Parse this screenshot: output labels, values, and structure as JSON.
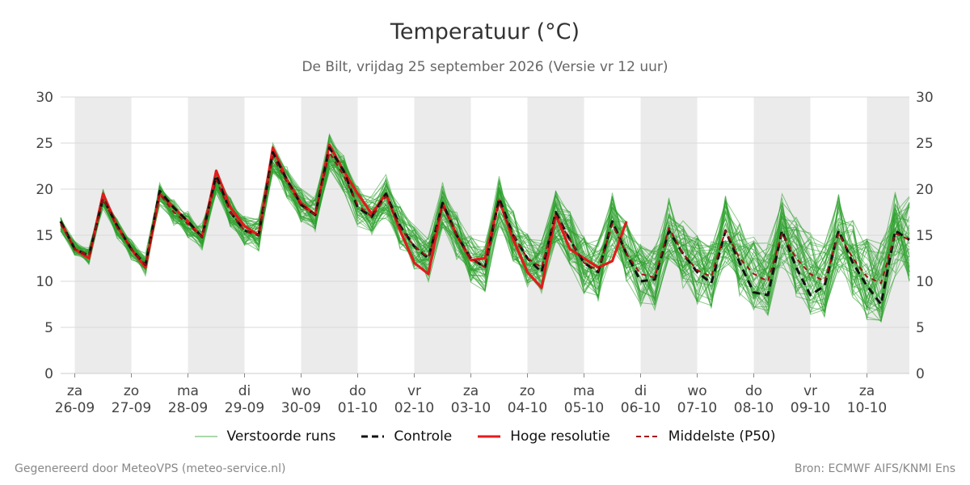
{
  "header": {
    "title": "Temperatuur (°C)",
    "subtitle": "De Bilt, vrijdag 25 september 2026 (Versie vr 12 uur)"
  },
  "footer": {
    "left": "Gegenereerd door MeteoVPS (meteo-service.nl)",
    "right": "Bron: ECMWF AIFS/KNMI Ens"
  },
  "colors": {
    "members": "#2ca02c",
    "controle": "#111111",
    "hoge_resolutie": "#e31a1c",
    "middelste": "#a50f15",
    "weekend_band": "#ebebeb"
  },
  "chart_data": {
    "type": "line",
    "title": "Temperatuur (°C)",
    "ylim": [
      0,
      30
    ],
    "yticks": [
      0,
      5,
      10,
      15,
      20,
      25,
      30
    ],
    "grid": true,
    "legend_position": "bottom",
    "x_unit": "days",
    "x_start": -0.25,
    "x_end": 14.75,
    "x_categories": [
      {
        "day": "za",
        "date": "26-09"
      },
      {
        "day": "zo",
        "date": "27-09"
      },
      {
        "day": "ma",
        "date": "28-09"
      },
      {
        "day": "di",
        "date": "29-09"
      },
      {
        "day": "wo",
        "date": "30-09"
      },
      {
        "day": "do",
        "date": "01-10"
      },
      {
        "day": "vr",
        "date": "02-10"
      },
      {
        "day": "za",
        "date": "03-10"
      },
      {
        "day": "zo",
        "date": "04-10"
      },
      {
        "day": "ma",
        "date": "05-10"
      },
      {
        "day": "di",
        "date": "06-10"
      },
      {
        "day": "wo",
        "date": "07-10"
      },
      {
        "day": "do",
        "date": "08-10"
      },
      {
        "day": "vr",
        "date": "09-10"
      },
      {
        "day": "za",
        "date": "10-10"
      }
    ],
    "legend": [
      {
        "key": "members",
        "label": "Verstoorde runs",
        "style": "thin"
      },
      {
        "key": "controle",
        "label": "Controle",
        "style": "dashed"
      },
      {
        "key": "hoge_resolutie",
        "label": "Hoge resolutie",
        "style": "solid"
      },
      {
        "key": "middelste",
        "label": "Middelste (P50)",
        "style": "dashed-thin"
      }
    ],
    "series": [
      {
        "name": "Controle",
        "x": [
          -0.25,
          0,
          0.25,
          0.5,
          0.75,
          1,
          1.25,
          1.5,
          1.75,
          2,
          2.25,
          2.5,
          2.75,
          3,
          3.25,
          3.5,
          3.75,
          4,
          4.25,
          4.5,
          4.75,
          5,
          5.25,
          5.5,
          5.75,
          6,
          6.25,
          6.5,
          6.75,
          7,
          7.25,
          7.5,
          7.75,
          8,
          8.25,
          8.5,
          8.75,
          9,
          9.25,
          9.5,
          9.75,
          10,
          10.25,
          10.5,
          10.75,
          11,
          11.25,
          11.5,
          11.75,
          12,
          12.25,
          12.5,
          12.75,
          13,
          13.25,
          13.5,
          13.75,
          14,
          14.25,
          14.5,
          14.75
        ],
        "y": [
          16.5,
          13.5,
          12.8,
          19,
          16,
          13.5,
          11.8,
          19.8,
          18,
          16.5,
          14.8,
          21.5,
          17.5,
          15.5,
          15,
          24,
          21,
          18.3,
          17.2,
          24.5,
          22,
          18,
          17,
          19.5,
          16,
          13.8,
          12.5,
          18.5,
          15,
          12.5,
          11.5,
          19,
          15,
          12.5,
          11,
          17.5,
          14.5,
          12,
          11,
          16.5,
          13,
          10,
          10.2,
          15.5,
          13,
          11,
          9.8,
          15.5,
          12,
          8.8,
          8.5,
          15.5,
          11.5,
          8.5,
          9.5,
          15.5,
          12,
          9.5,
          7.5,
          15.5,
          14.5
        ]
      },
      {
        "name": "Hoge resolutie",
        "x": [
          -0.25,
          0,
          0.25,
          0.5,
          0.75,
          1,
          1.25,
          1.5,
          1.75,
          2,
          2.25,
          2.5,
          2.75,
          3,
          3.25,
          3.5,
          3.75,
          4,
          4.25,
          4.5,
          4.75,
          5,
          5.25,
          5.5,
          5.75,
          6,
          6.25,
          6.5,
          6.75,
          7,
          7.25,
          7.5,
          7.75,
          8,
          8.25,
          8.5,
          8.75,
          9,
          9.25,
          9.5,
          9.75
        ],
        "y": [
          16.5,
          13.5,
          12.5,
          19.5,
          16,
          13.5,
          11.5,
          19.5,
          18,
          16.5,
          14.8,
          22,
          18,
          16,
          15,
          24.5,
          21,
          18.5,
          17.2,
          24.8,
          22,
          19.5,
          17.3,
          19.5,
          15.5,
          12,
          10.8,
          18.5,
          15,
          12.3,
          12.5,
          18.8,
          14.5,
          11,
          9.3,
          17.2,
          13.5,
          12.5,
          11.5,
          12.2,
          16.5
        ]
      },
      {
        "name": "Middelste (P50)",
        "x": [
          -0.25,
          0,
          0.25,
          0.5,
          0.75,
          1,
          1.25,
          1.5,
          1.75,
          2,
          2.25,
          2.5,
          2.75,
          3,
          3.25,
          3.5,
          3.75,
          4,
          4.25,
          4.5,
          4.75,
          5,
          5.25,
          5.5,
          5.75,
          6,
          6.25,
          6.5,
          6.75,
          7,
          7.25,
          7.5,
          7.75,
          8,
          8.25,
          8.5,
          8.75,
          9,
          9.25,
          9.5,
          9.75,
          10,
          10.25,
          10.5,
          10.75,
          11,
          11.25,
          11.5,
          11.75,
          12,
          12.25,
          12.5,
          12.75,
          13,
          13.25,
          13.5,
          13.75,
          14,
          14.25,
          14.5,
          14.75
        ],
        "y": [
          16.2,
          13.5,
          12.8,
          19,
          15.8,
          13.5,
          11.8,
          19.5,
          17.5,
          16.2,
          14.8,
          21,
          17.5,
          15.5,
          15,
          23.5,
          20.8,
          18.2,
          17.2,
          24,
          21.5,
          18.3,
          17,
          19.2,
          15.8,
          13.8,
          12.6,
          18.2,
          15,
          12.5,
          11.5,
          18.5,
          15,
          12.5,
          11.5,
          17.2,
          14.5,
          12,
          11.2,
          16.2,
          13,
          10.8,
          10.4,
          15.8,
          13,
          11.2,
          10.5,
          15.5,
          12.5,
          10.8,
          10,
          15.2,
          12.5,
          10.8,
          10,
          15.2,
          12.5,
          10.5,
          9.8,
          15.2,
          14.5
        ]
      }
    ]
  }
}
